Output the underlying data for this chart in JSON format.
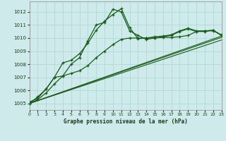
{
  "title": "Graphe pression niveau de la mer (hPa)",
  "background_color": "#ceeaea",
  "grid_color": "#b0d8d8",
  "line_color": "#1a5c1a",
  "xlim": [
    0,
    23
  ],
  "ylim": [
    1004.5,
    1012.8
  ],
  "yticks": [
    1005,
    1006,
    1007,
    1008,
    1009,
    1010,
    1011,
    1012
  ],
  "xticks": [
    0,
    1,
    2,
    3,
    4,
    5,
    6,
    7,
    8,
    9,
    10,
    11,
    12,
    13,
    14,
    15,
    16,
    17,
    18,
    19,
    20,
    21,
    22,
    23
  ],
  "series1_x": [
    0,
    1,
    2,
    3,
    4,
    5,
    6,
    7,
    8,
    9,
    10,
    11,
    12,
    13,
    14,
    15,
    16,
    17,
    18,
    19,
    20,
    21,
    22,
    23
  ],
  "series1_y": [
    1005.1,
    1005.4,
    1006.1,
    1007.0,
    1007.1,
    1008.0,
    1008.5,
    1009.8,
    1011.0,
    1011.2,
    1012.2,
    1012.0,
    1010.55,
    1010.2,
    1009.9,
    1010.0,
    1010.1,
    1010.2,
    1010.5,
    1010.7,
    1010.5,
    1010.5,
    1010.6,
    1010.2
  ],
  "series2_x": [
    0,
    1,
    2,
    3,
    4,
    5,
    6,
    7,
    8,
    9,
    10,
    11,
    12,
    13,
    14,
    15,
    16,
    17,
    18,
    19,
    20,
    21,
    22,
    23
  ],
  "series2_y": [
    1005.0,
    1005.5,
    1006.1,
    1007.0,
    1008.1,
    1008.3,
    1008.8,
    1009.6,
    1010.6,
    1011.3,
    1011.8,
    1012.25,
    1010.8,
    1009.95,
    1010.0,
    1010.1,
    1010.15,
    1010.25,
    1010.55,
    1010.75,
    1010.55,
    1010.55,
    1010.55,
    1010.25
  ],
  "series3_x": [
    0,
    1,
    2,
    3,
    4,
    5,
    6,
    7,
    8,
    9,
    10,
    11,
    12,
    13,
    14,
    15,
    16,
    17,
    18,
    19,
    20,
    21,
    22,
    23
  ],
  "series3_y": [
    1005.0,
    1005.3,
    1005.8,
    1006.5,
    1007.1,
    1007.3,
    1007.5,
    1007.9,
    1008.5,
    1009.0,
    1009.5,
    1009.9,
    1010.0,
    1010.0,
    1010.0,
    1010.0,
    1010.05,
    1010.05,
    1010.1,
    1010.2,
    1010.5,
    1010.55,
    1010.6,
    1010.2
  ],
  "trend1_x": [
    0,
    23
  ],
  "trend1_y": [
    1005.0,
    1009.85
  ],
  "trend2_x": [
    0,
    23
  ],
  "trend2_y": [
    1005.0,
    1010.15
  ],
  "trend3_x": [
    0,
    23
  ],
  "trend3_y": [
    1005.0,
    1010.05
  ]
}
